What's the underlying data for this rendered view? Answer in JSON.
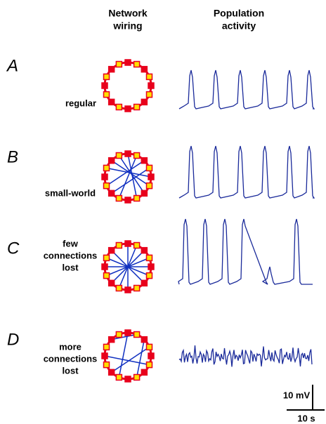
{
  "header": {
    "wiring": [
      "Network",
      "wiring"
    ],
    "activity": [
      "Population",
      "activity"
    ]
  },
  "panels": [
    {
      "letter": "A",
      "label": [
        "regular"
      ]
    },
    {
      "letter": "B",
      "label": [
        "small-world"
      ]
    },
    {
      "letter": "C",
      "label": [
        "few",
        "connections",
        "lost"
      ]
    },
    {
      "letter": "D",
      "label": [
        "more",
        "connections",
        "lost"
      ]
    }
  ],
  "scale_bar": {
    "voltage": "10 mV",
    "time": "10 s"
  }
}
